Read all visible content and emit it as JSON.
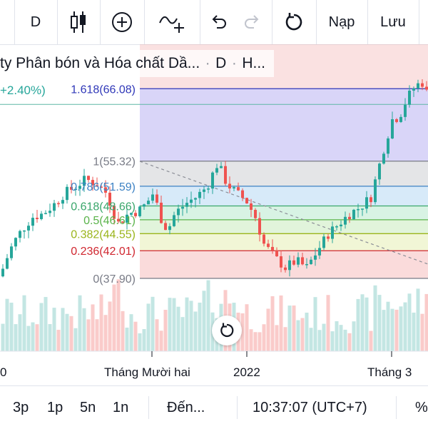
{
  "toolbar": {
    "interval": "D",
    "load_label": "Nạp",
    "save_label": "Lưu"
  },
  "legend": {
    "title": "ty Phân bón và Hóa chất Dầ...",
    "interval": "D",
    "exchange": "H..."
  },
  "change_label": "+2.40%)",
  "fib_levels": [
    {
      "label": "1.618(66.08)",
      "ratio": 1.618,
      "price": 66.08,
      "color": "#2f37b8",
      "fill": "rgba(103,86,226,0.25)"
    },
    {
      "label": "1(55.32)",
      "ratio": 1,
      "price": 55.32,
      "color": "#787b86",
      "fill": "rgba(120,123,134,0.20)"
    },
    {
      "label": "0.786(51.59)",
      "ratio": 0.786,
      "price": 51.59,
      "color": "#3d82c4",
      "fill": "rgba(74,159,226,0.22)"
    },
    {
      "label": "0.618(48.66)",
      "ratio": 0.618,
      "price": 48.66,
      "color": "#3aa66b",
      "fill": "rgba(76,200,130,0.22)"
    },
    {
      "label": "0.5(46.61)",
      "ratio": 0.5,
      "price": 46.61,
      "color": "#5ab34a",
      "fill": "rgba(120,205,90,0.22)"
    },
    {
      "label": "0.382(44.55)",
      "ratio": 0.382,
      "price": 44.55,
      "color": "#9bb51c",
      "fill": "rgba(200,220,90,0.25)"
    },
    {
      "label": "0.236(42.01)",
      "ratio": 0.236,
      "price": 42.01,
      "color": "#d0262f",
      "fill": "rgba(235,110,110,0.25)"
    },
    {
      "label": "0(37.90)",
      "ratio": 0,
      "price": 37.9,
      "color": "#787b86",
      "fill": ""
    }
  ],
  "time_axis": [
    "0",
    "Tháng Mười hai",
    "2022",
    "Tháng 3"
  ],
  "bottombar": {
    "ranges": [
      "3p",
      "1p",
      "5n",
      "1n"
    ],
    "goto": "Đến...",
    "clock": "10:37:07 (UTC+7)",
    "percent": "%"
  },
  "colors": {
    "up": "#26a69a",
    "down": "#ef5350"
  }
}
